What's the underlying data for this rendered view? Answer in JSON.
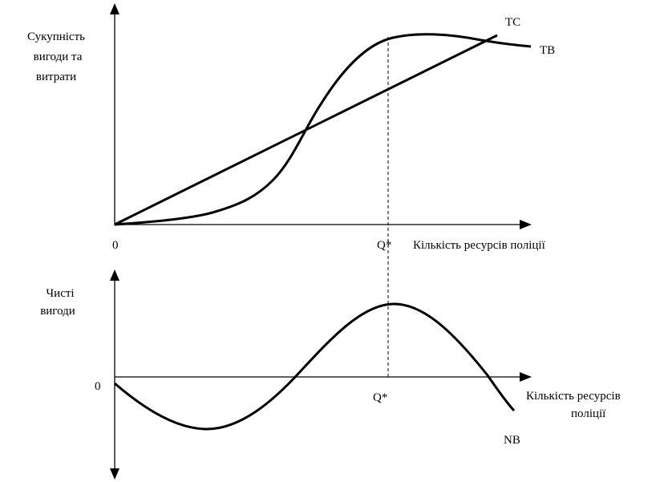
{
  "top_panel": {
    "y_label": [
      "Сукупність",
      "вигоди та",
      "витрати"
    ],
    "origin": "0",
    "q_label": "Q*",
    "x_label": "Кількість ресурсів поліції",
    "curves": [
      {
        "label": "TC"
      },
      {
        "label": "TB"
      }
    ]
  },
  "bottom_panel": {
    "y_label": [
      "Чисті",
      "вигоди"
    ],
    "origin": "0",
    "q_label": "Q*",
    "x_label": [
      "Кількість ресурсів",
      "поліції"
    ],
    "curves": [
      {
        "label": "NB"
      }
    ]
  }
}
